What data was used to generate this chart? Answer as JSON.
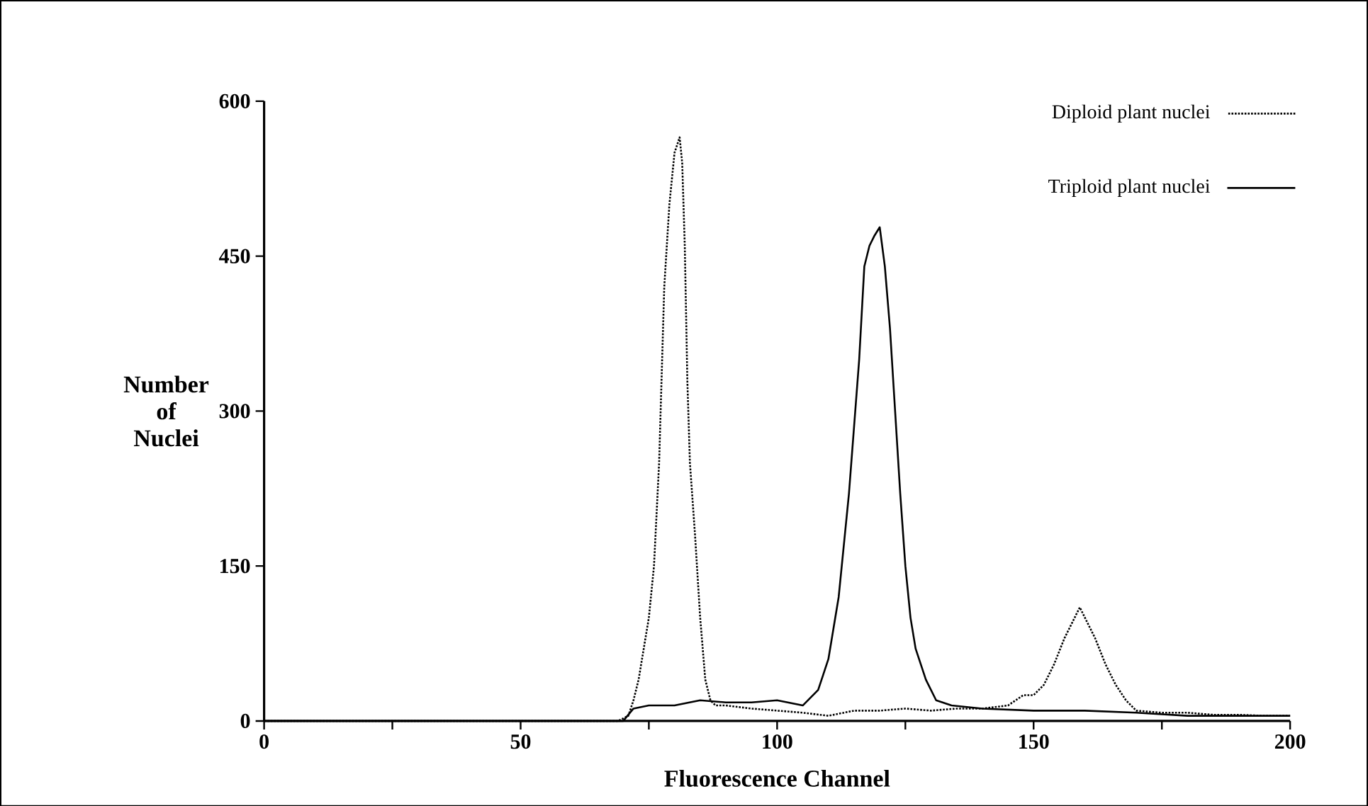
{
  "chart_data": {
    "type": "line",
    "xlabel": "Fluorescence Channel",
    "ylabel": "Number\nof\nNuclei",
    "xlim": [
      0,
      200
    ],
    "ylim": [
      0,
      600
    ],
    "xticks": [
      0,
      {
        "value": 25,
        "label": null
      },
      50,
      {
        "value": 75,
        "label": null
      },
      100,
      {
        "value": 125,
        "label": null
      },
      150,
      {
        "value": 175,
        "label": null
      },
      200
    ],
    "yticks": [
      0,
      150,
      300,
      450,
      600
    ],
    "legend": "top right",
    "grid": false,
    "marker": "none",
    "series": [
      {
        "name": "Diploid plant nuclei",
        "color": "#000000",
        "line_style": "dotted",
        "x": [
          0,
          69,
          71,
          72,
          73,
          74,
          75,
          76,
          77,
          78,
          79,
          80,
          81,
          81.5,
          82,
          82.5,
          83,
          84,
          85,
          86,
          87,
          88,
          90,
          95,
          100,
          105,
          110,
          115,
          120,
          125,
          130,
          135,
          140,
          145,
          148,
          150,
          152,
          154,
          156,
          158,
          159,
          160,
          162,
          164,
          166,
          168,
          170,
          175,
          180,
          185,
          190,
          195,
          200
        ],
        "values": [
          0,
          0,
          5,
          20,
          40,
          70,
          100,
          150,
          250,
          420,
          500,
          550,
          565,
          540,
          460,
          330,
          250,
          180,
          100,
          40,
          20,
          15,
          15,
          12,
          10,
          8,
          5,
          10,
          10,
          12,
          10,
          12,
          12,
          15,
          25,
          25,
          35,
          55,
          80,
          100,
          110,
          100,
          80,
          55,
          35,
          20,
          10,
          8,
          8,
          6,
          6,
          5,
          5
        ]
      },
      {
        "name": "Triploid plant nuclei",
        "color": "#000000",
        "line_style": "solid",
        "x": [
          0,
          70,
          72,
          75,
          80,
          85,
          90,
          95,
          100,
          105,
          108,
          109,
          110,
          112,
          114,
          116,
          117,
          118,
          119,
          120,
          121,
          122,
          123,
          124,
          125,
          126,
          127,
          129,
          131,
          134,
          140,
          150,
          160,
          170,
          180,
          190,
          200
        ],
        "values": [
          0,
          0,
          12,
          15,
          15,
          20,
          18,
          18,
          20,
          15,
          30,
          45,
          60,
          120,
          220,
          350,
          440,
          460,
          470,
          478,
          440,
          380,
          300,
          220,
          150,
          100,
          70,
          40,
          20,
          15,
          12,
          10,
          10,
          8,
          5,
          5,
          5
        ]
      }
    ]
  }
}
